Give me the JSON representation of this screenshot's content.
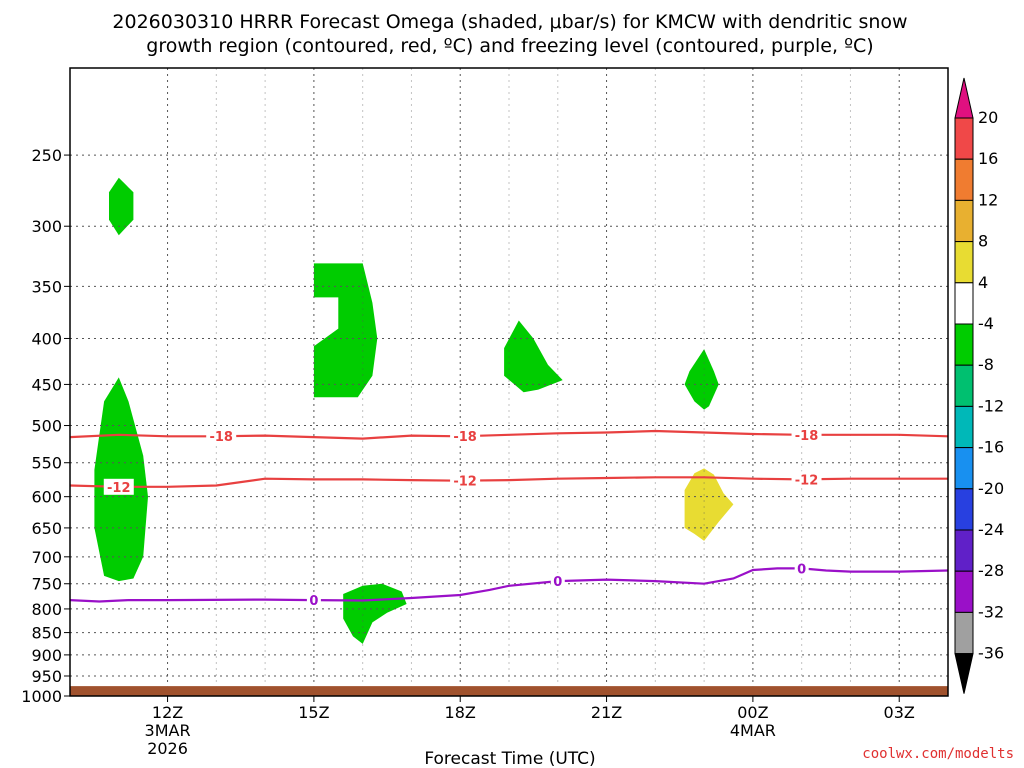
{
  "chart_data": {
    "type": "time-height cross section",
    "title_line1": "2026030310 HRRR Forecast Omega (shaded, μbar/s) for KMCW with dendritic snow",
    "title_line2": "growth region (contoured, red, ºC) and freezing level (contoured, purple, ºC)",
    "xlabel": "Forecast Time (UTC)",
    "credit": "coolwx.com/modelts",
    "x_range_hours": [
      10,
      28
    ],
    "p_range_hpa": [
      200,
      1000
    ],
    "y_ticks": [
      {
        "p": 250,
        "label": "250"
      },
      {
        "p": 300,
        "label": "300"
      },
      {
        "p": 350,
        "label": "350"
      },
      {
        "p": 400,
        "label": "400"
      },
      {
        "p": 450,
        "label": "450"
      },
      {
        "p": 500,
        "label": "500"
      },
      {
        "p": 550,
        "label": "550"
      },
      {
        "p": 600,
        "label": "600"
      },
      {
        "p": 650,
        "label": "650"
      },
      {
        "p": 700,
        "label": "700"
      },
      {
        "p": 750,
        "label": "750"
      },
      {
        "p": 800,
        "label": "800"
      },
      {
        "p": 850,
        "label": "850"
      },
      {
        "p": 900,
        "label": "900"
      },
      {
        "p": 950,
        "label": "950"
      },
      {
        "p": 1000,
        "label": "1000"
      }
    ],
    "x_ticks": [
      {
        "h": 12,
        "label": "12Z",
        "sub1": "3MAR",
        "sub2": "2026"
      },
      {
        "h": 15,
        "label": "15Z"
      },
      {
        "h": 18,
        "label": "18Z"
      },
      {
        "h": 21,
        "label": "21Z"
      },
      {
        "h": 24,
        "label": "00Z",
        "sub1": "4MAR"
      },
      {
        "h": 27,
        "label": "03Z"
      }
    ],
    "contours": [
      {
        "name": "-18",
        "color": "#e84040",
        "label": "-18",
        "points": [
          [
            10,
            515
          ],
          [
            11,
            512
          ],
          [
            12,
            514
          ],
          [
            13,
            514
          ],
          [
            14,
            513
          ],
          [
            15,
            515
          ],
          [
            16,
            517
          ],
          [
            17,
            513
          ],
          [
            18,
            514
          ],
          [
            19,
            512
          ],
          [
            20,
            510
          ],
          [
            21,
            509
          ],
          [
            22,
            507
          ],
          [
            23,
            509
          ],
          [
            24,
            511
          ],
          [
            25,
            512
          ],
          [
            26,
            512
          ],
          [
            27,
            512
          ],
          [
            28,
            514
          ]
        ],
        "label_at": [
          13.1,
          18.1,
          25.1
        ]
      },
      {
        "name": "-12",
        "color": "#e84040",
        "label": "-12",
        "points": [
          [
            10,
            583
          ],
          [
            11,
            585
          ],
          [
            12,
            585
          ],
          [
            13,
            583
          ],
          [
            14,
            573
          ],
          [
            15,
            574
          ],
          [
            16,
            574
          ],
          [
            17,
            575
          ],
          [
            18,
            576
          ],
          [
            19,
            575
          ],
          [
            20,
            573
          ],
          [
            21,
            572
          ],
          [
            22,
            571
          ],
          [
            23,
            571
          ],
          [
            24,
            573
          ],
          [
            25,
            574
          ],
          [
            26,
            573
          ],
          [
            27,
            573
          ],
          [
            28,
            573
          ]
        ],
        "label_at": [
          11.0,
          18.1,
          25.1
        ]
      },
      {
        "name": "freezing-0",
        "color": "#9a10c8",
        "label": "0",
        "points": [
          [
            10,
            782
          ],
          [
            10.6,
            785
          ],
          [
            11.2,
            782
          ],
          [
            12,
            782
          ],
          [
            14,
            781
          ],
          [
            15,
            782
          ],
          [
            16,
            783
          ],
          [
            17,
            778
          ],
          [
            18,
            772
          ],
          [
            18.6,
            762
          ],
          [
            19,
            754
          ],
          [
            20,
            745
          ],
          [
            21,
            742
          ],
          [
            22,
            745
          ],
          [
            23,
            750
          ],
          [
            23.6,
            740
          ],
          [
            24,
            724
          ],
          [
            24.5,
            721
          ],
          [
            25,
            721
          ],
          [
            25.5,
            725
          ],
          [
            26,
            727
          ],
          [
            27,
            727
          ],
          [
            28,
            725
          ]
        ],
        "label_at": [
          15.0,
          20.0,
          25.0
        ]
      }
    ],
    "omega_regions": [
      {
        "color": "#00cc00",
        "value_range": "-8 to -4",
        "points": [
          [
            11.0,
            265
          ],
          [
            11.3,
            275
          ],
          [
            11.3,
            295
          ],
          [
            11.0,
            307
          ],
          [
            10.8,
            295
          ],
          [
            10.8,
            275
          ]
        ]
      },
      {
        "color": "#00cc00",
        "value_range": "-8 to -4",
        "points": [
          [
            11.0,
            442
          ],
          [
            11.2,
            470
          ],
          [
            11.5,
            540
          ],
          [
            11.6,
            600
          ],
          [
            11.5,
            700
          ],
          [
            11.3,
            740
          ],
          [
            11.0,
            745
          ],
          [
            10.7,
            735
          ],
          [
            10.5,
            650
          ],
          [
            10.5,
            560
          ],
          [
            10.7,
            470
          ]
        ]
      },
      {
        "color": "#00cc00",
        "value_range": "-8 to -4",
        "points": [
          [
            15.0,
            330
          ],
          [
            16.0,
            330
          ],
          [
            16.2,
            365
          ],
          [
            16.3,
            400
          ],
          [
            16.2,
            440
          ],
          [
            15.9,
            465
          ],
          [
            15.0,
            465
          ],
          [
            15.0,
            408
          ],
          [
            15.5,
            390
          ],
          [
            15.5,
            360
          ],
          [
            15.0,
            360
          ]
        ]
      },
      {
        "color": "#00cc00",
        "value_range": "-8 to -4",
        "points": [
          [
            19.2,
            382
          ],
          [
            19.5,
            400
          ],
          [
            19.8,
            428
          ],
          [
            20.1,
            445
          ],
          [
            19.6,
            456
          ],
          [
            19.3,
            459
          ],
          [
            18.9,
            440
          ],
          [
            18.9,
            410
          ]
        ]
      },
      {
        "color": "#00cc00",
        "value_range": "-8 to -4",
        "points": [
          [
            23.0,
            411
          ],
          [
            23.2,
            435
          ],
          [
            23.3,
            450
          ],
          [
            23.1,
            476
          ],
          [
            23.0,
            480
          ],
          [
            22.8,
            470
          ],
          [
            22.6,
            450
          ],
          [
            22.7,
            435
          ]
        ]
      },
      {
        "color": "#e8dc32",
        "value_range": "4 to 8",
        "points": [
          [
            23.0,
            558
          ],
          [
            23.2,
            567
          ],
          [
            23.4,
            595
          ],
          [
            23.6,
            612
          ],
          [
            23.3,
            640
          ],
          [
            23.0,
            672
          ],
          [
            22.8,
            660
          ],
          [
            22.6,
            650
          ],
          [
            22.6,
            590
          ],
          [
            22.8,
            565
          ]
        ]
      },
      {
        "color": "#00cc00",
        "value_range": "-8 to -4",
        "points": [
          [
            16.4,
            750
          ],
          [
            16.8,
            765
          ],
          [
            16.9,
            790
          ],
          [
            16.5,
            808
          ],
          [
            16.2,
            828
          ],
          [
            16.0,
            875
          ],
          [
            15.8,
            858
          ],
          [
            15.6,
            820
          ],
          [
            15.6,
            770
          ],
          [
            16.0,
            754
          ]
        ]
      }
    ],
    "terrain": {
      "color": "#a0522d",
      "surface_p": 975
    },
    "colorbar": {
      "bins": [
        {
          "color": "#e01080",
          "label": "20"
        },
        {
          "color": "#f04848",
          "label": "16"
        },
        {
          "color": "#f07c30",
          "label": "12"
        },
        {
          "color": "#e8b030",
          "label": "8"
        },
        {
          "color": "#e8dc32",
          "label": "4"
        },
        {
          "color": "#ffffff",
          "label": "-4"
        },
        {
          "color": "#00cc00",
          "label": "-8"
        },
        {
          "color": "#00c070",
          "label": "-12"
        },
        {
          "color": "#00b8b8",
          "label": "-16"
        },
        {
          "color": "#1890f0",
          "label": "-20"
        },
        {
          "color": "#2840e0",
          "label": "-24"
        },
        {
          "color": "#6020c8",
          "label": "-28"
        },
        {
          "color": "#9a10c8",
          "label": "-32"
        },
        {
          "color": "#a0a0a0",
          "label": "-36"
        },
        {
          "color": "#000000",
          "label": ""
        }
      ]
    }
  }
}
